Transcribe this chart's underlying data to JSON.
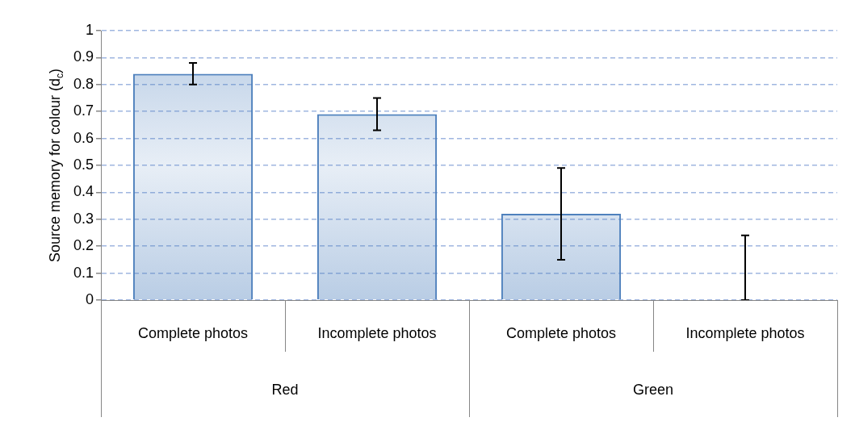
{
  "chart_data": {
    "type": "bar",
    "ylabel": "Source memory for colour (d$_{c}$)",
    "categories": [
      "Complete photos",
      "Incomplete photos",
      "Complete photos",
      "Incomplete photos"
    ],
    "values": [
      0.84,
      0.69,
      0.32,
      0
    ],
    "errors": [
      [
        0.8,
        0.88
      ],
      [
        0.63,
        0.75
      ],
      [
        0.15,
        0.49
      ],
      [
        0,
        0.24
      ]
    ],
    "color": "#4f81bd",
    "annotations": [
      "Red",
      "Green"
    ],
    "ylim": [
      0,
      1
    ],
    "yticks": [
      0,
      0.1,
      0.2,
      0.3,
      0.4,
      0.5,
      0.6,
      0.7,
      0.8,
      0.9,
      1
    ],
    "grid": "y",
    "legend": false
  }
}
